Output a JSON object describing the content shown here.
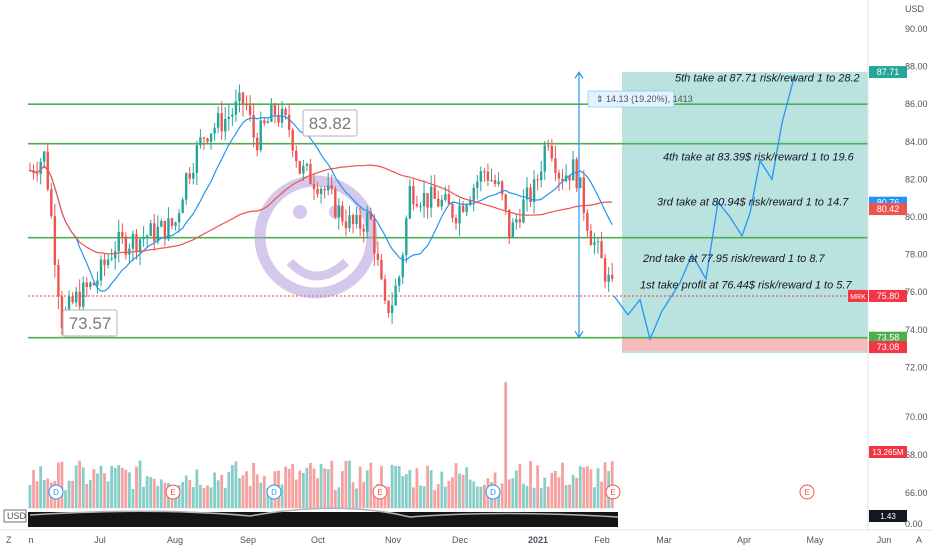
{
  "chart_data": {
    "type": "candlestick",
    "symbol": "MRK",
    "currency_label": "USD",
    "y_ticks": [
      "90.00",
      "88.00",
      "86.00",
      "84.00",
      "82.00",
      "80.00",
      "78.00",
      "76.00",
      "74.00",
      "72.00",
      "70.00",
      "68.00",
      "66.00"
    ],
    "price_ticks": [
      90,
      88,
      86,
      84,
      82,
      80,
      78,
      76,
      74,
      72
    ],
    "volume_ticks": [
      {
        "label": "70.00",
        "v": 70
      },
      {
        "label": "68.00",
        "v": 68
      },
      {
        "label": "66.00",
        "v": 66
      }
    ],
    "x_ticks": [
      "n",
      "Jul",
      "Aug",
      "Sep",
      "Oct",
      "Nov",
      "Dec",
      "2021",
      "Feb",
      "Mar",
      "Apr",
      "May",
      "Jun"
    ],
    "corner_left": "Z",
    "corner_right": "A",
    "horizontal_levels": [
      86.0,
      83.9,
      78.9,
      73.58
    ],
    "callout_high": "83.82",
    "callout_low": "73.57",
    "measure_label": "14.13 (19.20%), 1413",
    "targets": [
      {
        "text": "5th take at 87.71 risk/reward 1 to 28.2",
        "price": 87.71
      },
      {
        "text": "4th take at 83.39$ risk/reward 1 to 19.6",
        "price": 83.39
      },
      {
        "text": "3rd take at 80.94$ risk/reward 1 to 14.7",
        "price": 80.94
      },
      {
        "text": "2nd take at 77.95 risk/reward 1 to 8.7",
        "price": 77.95
      },
      {
        "text": "1st take profit at 76.44$ risk/reward 1 to 5.7",
        "price": 76.44
      }
    ],
    "position": {
      "entry": 75.8,
      "target": 87.71,
      "stop": 73.08
    },
    "price_labels": [
      {
        "text": "87.71",
        "price": 87.71,
        "color": "#26a69a"
      },
      {
        "text": "80.76",
        "price": 80.76,
        "color": "#2196f3"
      },
      {
        "text": "80.42",
        "price": 80.42,
        "color": "#ef5350"
      },
      {
        "text": "75.80",
        "price": 75.8,
        "color": "#f23645"
      },
      {
        "text": "73.58",
        "price": 73.58,
        "color": "#4caf50"
      },
      {
        "text": "73.08",
        "price": 73.08,
        "color": "#f23645"
      }
    ],
    "symbol_tag": "MRK",
    "volume_label": "13.265M",
    "indicator_label": "USD",
    "indicator_value": "1.43",
    "indicator_zero": "0.00",
    "event_markers": [
      "D",
      "E",
      "D",
      "E",
      "D",
      "E",
      "E"
    ],
    "colors": {
      "up": "#26a69a",
      "down": "#ef5350",
      "ma_fast": "#2196f3",
      "ma_slow": "#ef5350",
      "level": "#4caf50",
      "target_zone": "#b2dfdb",
      "stop_zone": "#f8bbbb",
      "smiley": "#b39ddb"
    }
  }
}
